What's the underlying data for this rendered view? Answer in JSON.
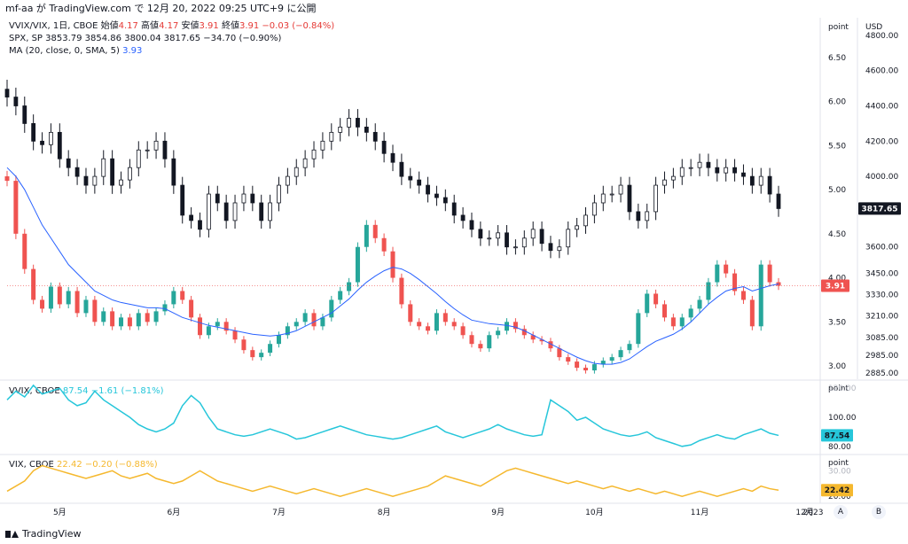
{
  "header": {
    "text": "mf-aa が TradingView.com で 12月 20, 2022 09:25 UTC+9 に公開"
  },
  "legend_main": {
    "ratio_prefix": "VVIX/VIX, 1日, CBOE  始値",
    "ratio_open": "4.17",
    "ratio_high_label": "  高値",
    "ratio_high": "4.17",
    "ratio_low_label": "  安値",
    "ratio_low": "3.91",
    "ratio_close_label": "  終値",
    "ratio_close": "3.91",
    "ratio_change": "  −0.03 (−0.84%)",
    "spx_text": "SPX, SP  3853.79  3854.86  3800.04  3817.65  −34.70 (−0.90%)",
    "ma_text": "MA (20, close, 0, SMA, 5)",
    "ma_value": "3.93"
  },
  "legend_vvix": {
    "label": "VVIX, CBOE",
    "value": "87.54",
    "change": "−1.61 (−1.81%)"
  },
  "legend_vix": {
    "label": "VIX, CBOE",
    "value": "22.42",
    "change": "−0.20 (−0.88%)"
  },
  "axes": {
    "point_label": "point",
    "usd_label": "USD",
    "ratio_ticks": [
      "6.50",
      "6.00",
      "5.50",
      "5.00",
      "4.50",
      "4.00",
      "3.50",
      "3.00"
    ],
    "spx_ticks": [
      "4800.00",
      "4600.00",
      "4400.00",
      "4200.00",
      "4000.00",
      "3600.00",
      "3450.00",
      "3330.00",
      "3210.00",
      "3085.00",
      "2985.00",
      "2885.00"
    ],
    "vvix_ticks": [
      "120.00",
      "100.00",
      "80.00"
    ],
    "vix_ticks": [
      "30.00",
      "20.00"
    ],
    "month_labels": [
      "5月",
      "6月",
      "7月",
      "8月",
      "9月",
      "10月",
      "11月",
      "12月",
      "2023"
    ],
    "ratio_badge": "3.91",
    "spx_badge": "3817.65",
    "vvix_badge": "87.54",
    "vix_badge": "22.42",
    "btn_a": "A",
    "btn_b": "B"
  },
  "footer": {
    "brand": "TradingView"
  },
  "colors": {
    "up": "#26a69a",
    "down": "#ef5350",
    "spx": "#131722",
    "ma": "#2962ff",
    "vvix": "#26c6da",
    "vix": "#f5b82e"
  },
  "chart_data": [
    {
      "type": "candlestick",
      "series": [
        {
          "name": "VVIX/VIX",
          "axis": "left-price",
          "ylim": [
            2.85,
            6.95
          ],
          "close": [
            5.1,
            4.5,
            4.1,
            3.75,
            3.65,
            3.9,
            3.7,
            3.85,
            3.6,
            3.75,
            3.5,
            3.62,
            3.45,
            3.55,
            3.45,
            3.6,
            3.5,
            3.62,
            3.7,
            3.85,
            3.75,
            3.55,
            3.35,
            3.45,
            3.5,
            3.4,
            3.3,
            3.18,
            3.1,
            3.15,
            3.25,
            3.35,
            3.45,
            3.5,
            3.6,
            3.45,
            3.55,
            3.75,
            3.85,
            3.95,
            4.35,
            4.6,
            4.45,
            4.3,
            4.0,
            3.7,
            3.5,
            3.45,
            3.4,
            3.6,
            3.5,
            3.45,
            3.35,
            3.25,
            3.2,
            3.35,
            3.4,
            3.5,
            3.42,
            3.35,
            3.3,
            3.28,
            3.2,
            3.1,
            3.05,
            2.98,
            2.95,
            3.02,
            3.06,
            3.1,
            3.18,
            3.25,
            3.6,
            3.82,
            3.7,
            3.55,
            3.45,
            3.55,
            3.65,
            3.75,
            3.95,
            4.15,
            4.05,
            3.85,
            3.75,
            3.45,
            4.15,
            3.95,
            3.91
          ],
          "ma20": [
            5.25,
            5.15,
            5.0,
            4.8,
            4.6,
            4.45,
            4.3,
            4.15,
            4.05,
            3.95,
            3.85,
            3.8,
            3.75,
            3.72,
            3.7,
            3.68,
            3.66,
            3.66,
            3.65,
            3.6,
            3.55,
            3.52,
            3.49,
            3.46,
            3.44,
            3.42,
            3.4,
            3.38,
            3.36,
            3.35,
            3.34,
            3.35,
            3.37,
            3.4,
            3.45,
            3.5,
            3.55,
            3.6,
            3.68,
            3.76,
            3.86,
            3.95,
            4.02,
            4.08,
            4.12,
            4.1,
            4.05,
            3.98,
            3.9,
            3.82,
            3.73,
            3.65,
            3.58,
            3.52,
            3.5,
            3.48,
            3.47,
            3.46,
            3.44,
            3.4,
            3.35,
            3.3,
            3.25,
            3.2,
            3.15,
            3.1,
            3.06,
            3.03,
            3.02,
            3.02,
            3.04,
            3.08,
            3.15,
            3.22,
            3.28,
            3.32,
            3.36,
            3.42,
            3.5,
            3.6,
            3.7,
            3.78,
            3.85,
            3.88,
            3.9,
            3.85,
            3.88,
            3.91,
            3.93
          ]
        },
        {
          "name": "SPX",
          "axis": "right-price",
          "ylim": [
            2850,
            4900
          ],
          "close": [
            4450,
            4400,
            4300,
            4200,
            4180,
            4250,
            4100,
            4050,
            4000,
            3950,
            4000,
            4100,
            3950,
            3980,
            4050,
            4150,
            4150,
            4200,
            4100,
            3950,
            3780,
            3750,
            3700,
            3900,
            3850,
            3750,
            3850,
            3900,
            3850,
            3750,
            3850,
            3950,
            4000,
            4050,
            4100,
            4150,
            4200,
            4250,
            4280,
            4330,
            4280,
            4250,
            4200,
            4130,
            4080,
            4000,
            3980,
            3950,
            3900,
            3880,
            3850,
            3780,
            3750,
            3700,
            3650,
            3650,
            3680,
            3600,
            3600,
            3650,
            3700,
            3620,
            3580,
            3600,
            3700,
            3720,
            3780,
            3850,
            3900,
            3900,
            3950,
            3800,
            3750,
            3800,
            3950,
            3980,
            4000,
            4050,
            4050,
            4080,
            4050,
            4020,
            4050,
            4020,
            4000,
            3950,
            4000,
            3900,
            3817.65
          ]
        }
      ]
    },
    {
      "type": "line",
      "name": "VVIX",
      "ylim": [
        75,
        125
      ],
      "values": [
        112,
        118,
        114,
        122,
        116,
        118,
        120,
        112,
        108,
        110,
        118,
        112,
        108,
        104,
        100,
        95,
        92,
        90,
        92,
        96,
        108,
        115,
        110,
        100,
        92,
        90,
        88,
        87,
        88,
        90,
        92,
        90,
        88,
        85,
        86,
        88,
        90,
        92,
        94,
        92,
        90,
        88,
        87,
        86,
        85,
        86,
        88,
        90,
        92,
        94,
        90,
        88,
        86,
        88,
        90,
        92,
        95,
        92,
        90,
        88,
        87,
        88,
        112,
        108,
        104,
        98,
        100,
        96,
        92,
        90,
        88,
        87,
        88,
        90,
        86,
        84,
        82,
        80,
        81,
        84,
        86,
        88,
        86,
        85,
        88,
        90,
        92,
        89,
        87.54
      ]
    },
    {
      "type": "line",
      "name": "VIX",
      "ylim": [
        18,
        36
      ],
      "values": [
        22,
        24,
        26,
        30,
        32,
        31,
        30,
        29,
        28,
        27,
        28,
        29,
        30,
        28,
        27,
        28,
        29,
        27,
        26,
        25,
        26,
        28,
        30,
        28,
        26,
        25,
        24,
        23,
        22,
        23,
        24,
        23,
        22,
        21,
        22,
        23,
        22,
        21,
        20,
        21,
        22,
        23,
        22,
        21,
        20,
        21,
        22,
        23,
        24,
        26,
        28,
        27,
        26,
        25,
        24,
        26,
        28,
        30,
        31,
        30,
        29,
        28,
        27,
        26,
        25,
        26,
        25,
        24,
        23,
        24,
        23,
        22,
        23,
        22,
        21,
        22,
        21,
        20,
        21,
        22,
        21,
        20,
        21,
        22,
        23,
        22,
        24,
        23,
        22.42
      ]
    }
  ]
}
